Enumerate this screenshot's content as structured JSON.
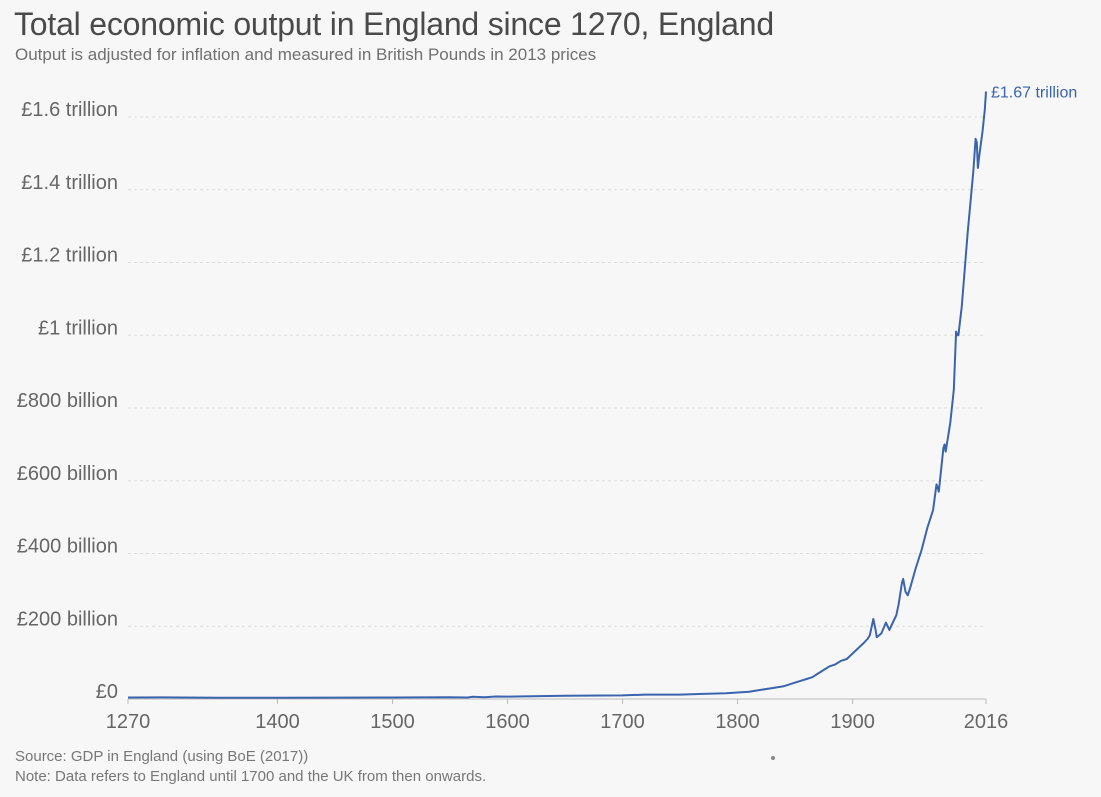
{
  "header": {
    "title": "Total economic output in England since 1270, England",
    "subtitle": "Output is adjusted for inflation and measured in British Pounds in 2013 prices"
  },
  "footer": {
    "source": "Source: GDP in England (using BoE (2017))",
    "note": "Note: Data refers to England until 1700 and the UK from then onwards."
  },
  "chart_data": {
    "type": "line",
    "title": "Total economic output in England since 1270, England",
    "subtitle": "Output is adjusted for inflation and measured in British Pounds in 2013 prices",
    "xlim": [
      1270,
      2016
    ],
    "ylim": [
      0,
      1600000000000
    ],
    "x_ticks": [
      1270,
      1400,
      1500,
      1600,
      1700,
      1800,
      1900,
      2016
    ],
    "x_tick_labels": [
      "1270",
      "1400",
      "1500",
      "1600",
      "1700",
      "1800",
      "1900",
      "2016"
    ],
    "y_ticks": [
      0,
      200000000000,
      400000000000,
      600000000000,
      800000000000,
      1000000000000,
      1200000000000,
      1400000000000,
      1600000000000
    ],
    "y_tick_labels": [
      "£0",
      "£200 billion",
      "£400 billion",
      "£600 billion",
      "£800 billion",
      "£1 trillion",
      "£1.2 trillion",
      "£1.4 trillion",
      "£1.6 trillion"
    ],
    "grid": "horizontal-dotted",
    "line_color": "#3a64ad",
    "end_label": "£1.67 trillion",
    "series": [
      {
        "x": [
          1270,
          1300,
          1350,
          1400,
          1450,
          1500,
          1550,
          1565,
          1570,
          1580,
          1590,
          1600,
          1650,
          1700,
          1720,
          1750,
          1770,
          1790,
          1800,
          1810,
          1820,
          1830,
          1840,
          1850,
          1855,
          1860,
          1865,
          1870,
          1875,
          1880,
          1885,
          1890,
          1895,
          1900,
          1905,
          1910,
          1913,
          1915,
          1918,
          1920,
          1921,
          1925,
          1929,
          1932,
          1935,
          1938,
          1940,
          1943,
          1944,
          1946,
          1948,
          1950,
          1955,
          1960,
          1965,
          1970,
          1973,
          1974,
          1975,
          1979,
          1980,
          1981,
          1985,
          1988,
          1990,
          1991,
          1992,
          1995,
          2000,
          2005,
          2007,
          2008,
          2009,
          2010,
          2013,
          2015,
          2016
        ],
        "y": [
          4000000000,
          4500000000,
          3500000000,
          3500000000,
          3800000000,
          4000000000,
          5000000000,
          4000000000,
          6000000000,
          5000000000,
          7000000000,
          6500000000,
          9000000000,
          10000000000,
          12000000000,
          12000000000,
          14000000000,
          16000000000,
          18000000000,
          20000000000,
          25000000000,
          30000000000,
          35000000000,
          45000000000,
          50000000000,
          55000000000,
          60000000000,
          70000000000,
          80000000000,
          90000000000,
          95000000000,
          105000000000,
          110000000000,
          125000000000,
          140000000000,
          155000000000,
          165000000000,
          175000000000,
          220000000000,
          190000000000,
          170000000000,
          180000000000,
          210000000000,
          190000000000,
          210000000000,
          230000000000,
          260000000000,
          320000000000,
          330000000000,
          295000000000,
          285000000000,
          305000000000,
          360000000000,
          410000000000,
          470000000000,
          520000000000,
          590000000000,
          580000000000,
          570000000000,
          690000000000,
          700000000000,
          680000000000,
          760000000000,
          850000000000,
          1010000000000,
          1000000000000,
          1000000000000,
          1080000000000,
          1280000000000,
          1450000000000,
          1540000000000,
          1530000000000,
          1460000000000,
          1490000000000,
          1560000000000,
          1620000000000,
          1670000000000
        ]
      }
    ]
  }
}
